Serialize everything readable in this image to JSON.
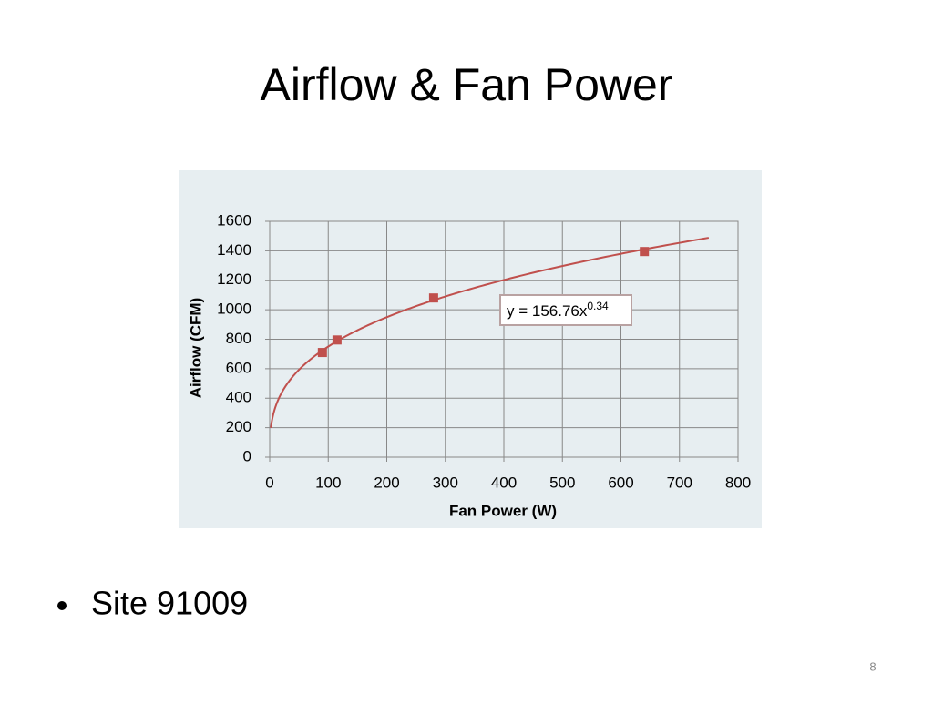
{
  "slide": {
    "title": "Airflow & Fan Power",
    "bullet": "Site 91009",
    "page_number": "8"
  },
  "chart_data": {
    "type": "scatter",
    "x_label": "Fan Power (W)",
    "y_label": "Airflow (CFM)",
    "series": [
      {
        "name": "Site 91009",
        "color": "#c0504d",
        "x": [
          90,
          115,
          280,
          640
        ],
        "values": [
          710,
          795,
          1080,
          1395
        ]
      }
    ],
    "trendline": {
      "type": "power",
      "coefficient": 156.76,
      "exponent": 0.34,
      "equation": "y = 156.76x",
      "exponent_label": "0.34",
      "x_range": [
        2,
        750
      ],
      "color": "#c0504d"
    },
    "xlim": [
      0,
      800
    ],
    "xticks": [
      0,
      100,
      200,
      300,
      400,
      500,
      600,
      700,
      800
    ],
    "ylim": [
      0,
      1600
    ],
    "yticks": [
      0,
      200,
      400,
      600,
      800,
      1000,
      1200,
      1400,
      1600
    ],
    "grid": true,
    "background": "#e7eef1"
  }
}
